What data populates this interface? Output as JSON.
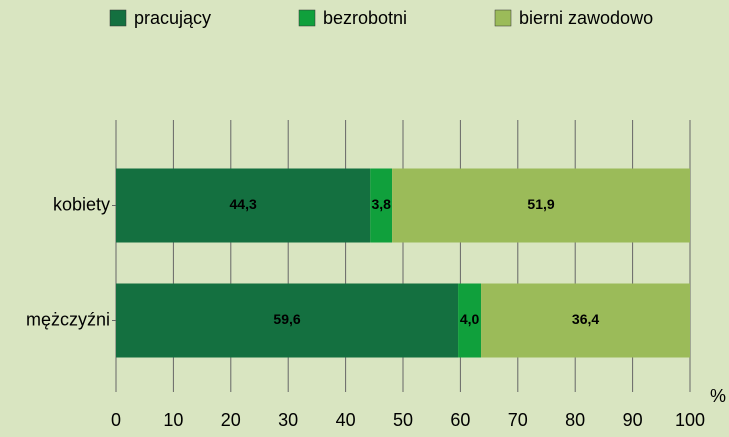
{
  "chart_data": {
    "type": "stacked_barh",
    "categories": [
      "kobiety",
      "mężczyźni"
    ],
    "series": [
      {
        "name": "pracujący",
        "color": "#147040",
        "values": [
          44.3,
          59.6
        ],
        "value_labels": [
          "44,3",
          "59,6"
        ]
      },
      {
        "name": "bezrobotni",
        "color": "#10a03c",
        "values": [
          3.8,
          4.0
        ],
        "value_labels": [
          "3,8",
          "4,0"
        ]
      },
      {
        "name": "bierni zawodowo",
        "color": "#9bbb59",
        "values": [
          51.9,
          36.4
        ],
        "value_labels": [
          "51,9",
          "36,4"
        ]
      }
    ],
    "xlabel": "%",
    "xlim": [
      0,
      100
    ],
    "xticks": [
      0,
      10,
      20,
      30,
      40,
      50,
      60,
      70,
      80,
      90,
      100
    ],
    "grid": true,
    "legend": "top"
  }
}
